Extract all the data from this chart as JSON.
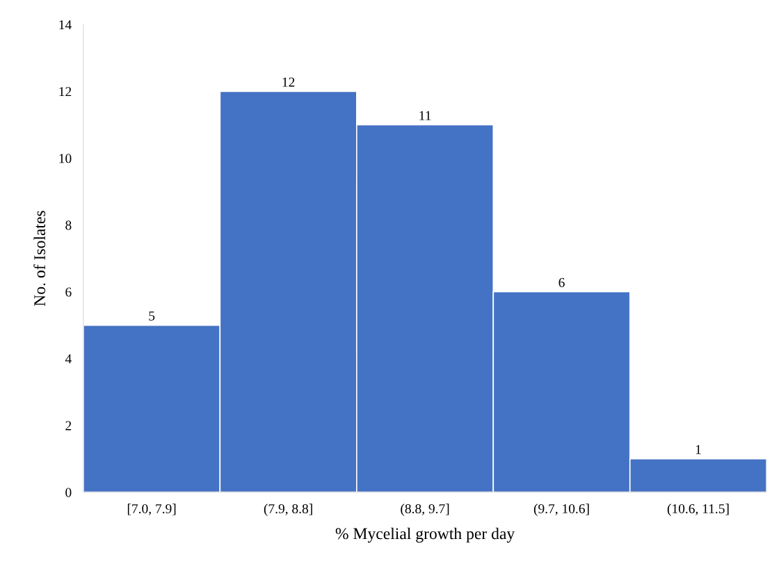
{
  "chart_data": {
    "type": "bar",
    "categories": [
      "[7.0, 7.9]",
      "(7.9, 8.8]",
      "(8.8, 9.7]",
      "(9.7, 10.6]",
      "(10.6, 11.5]"
    ],
    "values": [
      5,
      12,
      11,
      6,
      1
    ],
    "color": "#4472c4",
    "xlabel": "% Mycelial growth per day",
    "ylabel": "No. of Isolates",
    "ylim": [
      0,
      14
    ],
    "yticks": [
      0,
      2,
      4,
      6,
      8,
      10,
      12,
      14
    ],
    "data_labels": true,
    "grid": false,
    "legend": false
  }
}
